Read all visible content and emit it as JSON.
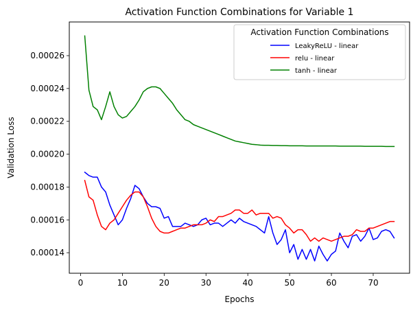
{
  "chart_data": {
    "type": "line",
    "title": "Activation Function Combinations for Variable 1",
    "xlabel": "Epochs",
    "ylabel": "Validation Loss",
    "xlim": [
      -2.7,
      78.7
    ],
    "ylim": [
      0.0001275,
      0.0002805
    ],
    "xticks": [
      0,
      10,
      20,
      30,
      40,
      50,
      60,
      70
    ],
    "yticks": [
      0.00014,
      0.00016,
      0.00018,
      0.0002,
      0.00022,
      0.00024,
      0.00026
    ],
    "ytick_labels": [
      "0.00014",
      "0.00016",
      "0.00018",
      "0.00020",
      "0.00022",
      "0.00024",
      "0.00026"
    ],
    "grid": false,
    "legend": {
      "title": "Activation Function Combinations",
      "position": "top-right"
    },
    "series": [
      {
        "name": "LeakyReLU - linear",
        "color": "#0000ff",
        "x": [
          1,
          2,
          3,
          4,
          5,
          6,
          7,
          8,
          9,
          10,
          11,
          12,
          13,
          14,
          15,
          16,
          17,
          18,
          19,
          20,
          21,
          22,
          23,
          24,
          25,
          26,
          27,
          28,
          29,
          30,
          31,
          32,
          33,
          34,
          35,
          36,
          37,
          38,
          39,
          40,
          41,
          42,
          43,
          44,
          45,
          46,
          47,
          48,
          49,
          50,
          51,
          52,
          53,
          54,
          55,
          56,
          57,
          58,
          59,
          60,
          61,
          62,
          63,
          64,
          65,
          66,
          67,
          68,
          69,
          70,
          71,
          72,
          73,
          74,
          75
        ],
        "values": [
          0.000189,
          0.000187,
          0.000186,
          0.000186,
          0.00018,
          0.000177,
          0.000169,
          0.000163,
          0.000157,
          0.00016,
          0.000167,
          0.000173,
          0.000181,
          0.000179,
          0.000174,
          0.00017,
          0.000168,
          0.000168,
          0.000167,
          0.000161,
          0.000162,
          0.000156,
          0.000156,
          0.000156,
          0.000158,
          0.000157,
          0.000156,
          0.000157,
          0.00016,
          0.000161,
          0.000157,
          0.000158,
          0.000158,
          0.000156,
          0.000158,
          0.00016,
          0.000158,
          0.000161,
          0.000159,
          0.000158,
          0.000157,
          0.000156,
          0.000154,
          0.000152,
          0.000162,
          0.000152,
          0.000145,
          0.000148,
          0.000154,
          0.00014,
          0.000145,
          0.000136,
          0.000142,
          0.000136,
          0.000142,
          0.000135,
          0.000144,
          0.000139,
          0.000135,
          0.000139,
          0.000141,
          0.000152,
          0.000147,
          0.000143,
          0.00015,
          0.000151,
          0.000147,
          0.00015,
          0.000155,
          0.000148,
          0.000149,
          0.000153,
          0.000154,
          0.000153,
          0.000149
        ]
      },
      {
        "name": "relu - linear",
        "color": "#ff0000",
        "x": [
          1,
          2,
          3,
          4,
          5,
          6,
          7,
          8,
          9,
          10,
          11,
          12,
          13,
          14,
          15,
          16,
          17,
          18,
          19,
          20,
          21,
          22,
          23,
          24,
          25,
          26,
          27,
          28,
          29,
          30,
          31,
          32,
          33,
          34,
          35,
          36,
          37,
          38,
          39,
          40,
          41,
          42,
          43,
          44,
          45,
          46,
          47,
          48,
          49,
          50,
          51,
          52,
          53,
          54,
          55,
          56,
          57,
          58,
          59,
          60,
          61,
          62,
          63,
          64,
          65,
          66,
          67,
          68,
          69,
          70,
          71,
          72,
          73,
          74,
          75
        ],
        "values": [
          0.000184,
          0.000174,
          0.000172,
          0.000163,
          0.000156,
          0.000154,
          0.000158,
          0.00016,
          0.000164,
          0.000168,
          0.000172,
          0.000175,
          0.000177,
          0.000177,
          0.000174,
          0.000168,
          0.000161,
          0.000156,
          0.000153,
          0.000152,
          0.000152,
          0.000153,
          0.000154,
          0.000155,
          0.000155,
          0.000156,
          0.000157,
          0.000157,
          0.000157,
          0.000158,
          0.00016,
          0.000159,
          0.000162,
          0.000162,
          0.000163,
          0.000164,
          0.000166,
          0.000166,
          0.000164,
          0.000164,
          0.000166,
          0.000163,
          0.000164,
          0.000164,
          0.000164,
          0.000161,
          0.000162,
          0.000161,
          0.000157,
          0.000155,
          0.000152,
          0.000154,
          0.000154,
          0.000151,
          0.000147,
          0.000149,
          0.000147,
          0.000149,
          0.000148,
          0.000147,
          0.000148,
          0.000149,
          0.00015,
          0.00015,
          0.000151,
          0.000154,
          0.000153,
          0.000153,
          0.000155,
          0.000155,
          0.000156,
          0.000157,
          0.000158,
          0.000159,
          0.000159
        ]
      },
      {
        "name": "tanh - linear",
        "color": "#008000",
        "x": [
          1,
          2,
          3,
          4,
          5,
          6,
          7,
          8,
          9,
          10,
          11,
          12,
          13,
          14,
          15,
          16,
          17,
          18,
          19,
          20,
          21,
          22,
          23,
          24,
          25,
          26,
          27,
          28,
          29,
          30,
          31,
          32,
          33,
          34,
          35,
          36,
          37,
          38,
          39,
          40,
          41,
          42,
          43,
          44,
          45,
          46,
          47,
          48,
          49,
          50,
          51,
          52,
          53,
          54,
          55,
          56,
          57,
          58,
          59,
          60,
          61,
          62,
          63,
          64,
          65,
          66,
          67,
          68,
          69,
          70,
          71,
          72,
          73,
          74,
          75
        ],
        "values": [
          0.000272,
          0.000239,
          0.000229,
          0.000227,
          0.000221,
          0.000229,
          0.000238,
          0.000229,
          0.000224,
          0.000222,
          0.000223,
          0.000226,
          0.000229,
          0.000233,
          0.000238,
          0.00024,
          0.000241,
          0.000241,
          0.00024,
          0.000237,
          0.000234,
          0.000231,
          0.000227,
          0.000224,
          0.000221,
          0.00022,
          0.000218,
          0.000217,
          0.000216,
          0.000215,
          0.000214,
          0.000213,
          0.000212,
          0.000211,
          0.00021,
          0.000209,
          0.000208,
          0.0002075,
          0.000207,
          0.0002065,
          0.000206,
          0.0002058,
          0.0002055,
          0.0002054,
          0.0002054,
          0.0002053,
          0.0002053,
          0.0002052,
          0.0002052,
          0.0002051,
          0.0002051,
          0.0002051,
          0.0002051,
          0.000205,
          0.000205,
          0.000205,
          0.000205,
          0.000205,
          0.000205,
          0.000205,
          0.000205,
          0.0002049,
          0.0002049,
          0.0002049,
          0.0002049,
          0.0002049,
          0.0002049,
          0.0002048,
          0.0002048,
          0.0002048,
          0.0002048,
          0.0002048,
          0.0002047,
          0.0002047,
          0.0002047
        ]
      }
    ]
  }
}
